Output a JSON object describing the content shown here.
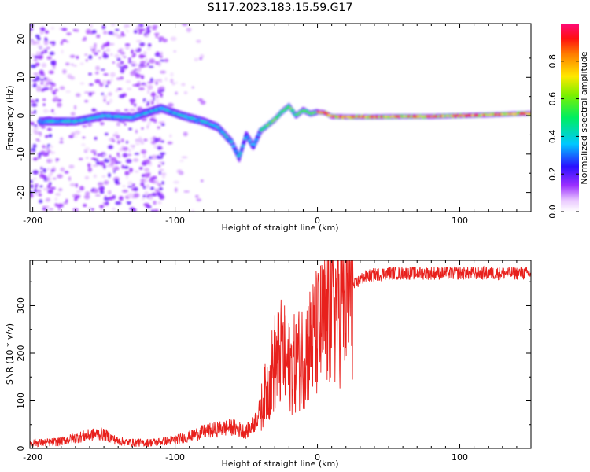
{
  "title": "S117.2023.183.15.59.G17",
  "colors": {
    "snr_line": "#e8201c",
    "axis": "#000000",
    "background": "#ffffff"
  },
  "chart_data": [
    {
      "type": "heatmap",
      "title": "S117.2023.183.15.59.G17",
      "xlabel": "Height of straight line (km)",
      "ylabel": "Frequency (Hz)",
      "xlim": [
        -202,
        150
      ],
      "ylim": [
        -25,
        24
      ],
      "x_ticks": [
        -200,
        -100,
        0,
        100
      ],
      "y_ticks": [
        -20,
        -10,
        0,
        10,
        20
      ],
      "ridge": {
        "x": [
          -190,
          -170,
          -150,
          -130,
          -110,
          -95,
          -80,
          -70,
          -60,
          -55,
          -50,
          -45,
          -40,
          -35,
          -30,
          -25,
          -20,
          -15,
          -10,
          -5,
          0,
          5,
          10,
          20,
          40,
          60,
          80,
          100,
          120,
          140,
          150
        ],
        "frequency": [
          -1.5,
          -1.5,
          0,
          -0.5,
          2,
          0,
          -1.5,
          -3,
          -7,
          -11,
          -5,
          -8,
          -4,
          -2.5,
          -1,
          1,
          2.5,
          0,
          1.5,
          0.5,
          1,
          0.8,
          -0.2,
          -0.3,
          -0.3,
          -0.2,
          -0.2,
          0,
          0.2,
          0.5,
          0.6
        ]
      },
      "colorbar": {
        "label": "Normalized spectral amplitude",
        "range": [
          0,
          1
        ],
        "ticks": [
          0.0,
          0.2,
          0.4,
          0.6,
          0.8
        ],
        "tick_labels": [
          "0.0",
          "0.2",
          "0.4",
          "0.6",
          "0.8"
        ]
      }
    },
    {
      "type": "line",
      "xlabel": "Height of straight line (km)",
      "ylabel": "SNR (10 * v/v)",
      "xlim": [
        -202,
        150
      ],
      "ylim": [
        0,
        395
      ],
      "x_ticks": [
        -200,
        -100,
        0,
        100
      ],
      "y_ticks": [
        0,
        100,
        200,
        300
      ],
      "series": [
        {
          "name": "SNR",
          "x": [
            -202,
            -190,
            -180,
            -170,
            -160,
            -155,
            -150,
            -145,
            -140,
            -130,
            -120,
            -110,
            -100,
            -90,
            -80,
            -70,
            -60,
            -55,
            -50,
            -45,
            -40,
            -35,
            -30,
            -25,
            -20,
            -15,
            -10,
            -5,
            0,
            5,
            10,
            15,
            20,
            25,
            30,
            35,
            40,
            50,
            60,
            80,
            100,
            120,
            140,
            150
          ],
          "y": [
            12,
            12,
            15,
            22,
            28,
            30,
            30,
            22,
            15,
            12,
            12,
            14,
            18,
            25,
            35,
            40,
            45,
            40,
            35,
            50,
            80,
            130,
            180,
            200,
            170,
            180,
            200,
            220,
            240,
            260,
            290,
            310,
            320,
            340,
            355,
            362,
            365,
            368,
            368,
            368,
            368,
            368,
            368,
            368
          ]
        }
      ]
    }
  ]
}
